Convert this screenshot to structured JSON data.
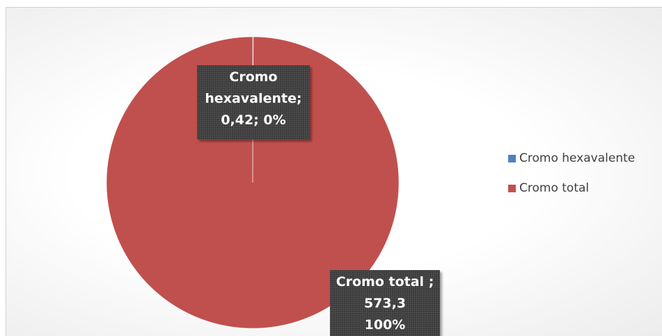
{
  "chart_data": {
    "type": "pie",
    "categories": [
      "Cromo hexavalente",
      "Cromo total"
    ],
    "values": [
      0.42,
      573.3
    ],
    "value_labels": [
      "Cromo\nhexavalente;\n0,42; 0%",
      "Cromo total ;\n573,3\n100%"
    ],
    "colors": [
      "#4f81bd",
      "#c0504d"
    ],
    "legend": "right"
  }
}
